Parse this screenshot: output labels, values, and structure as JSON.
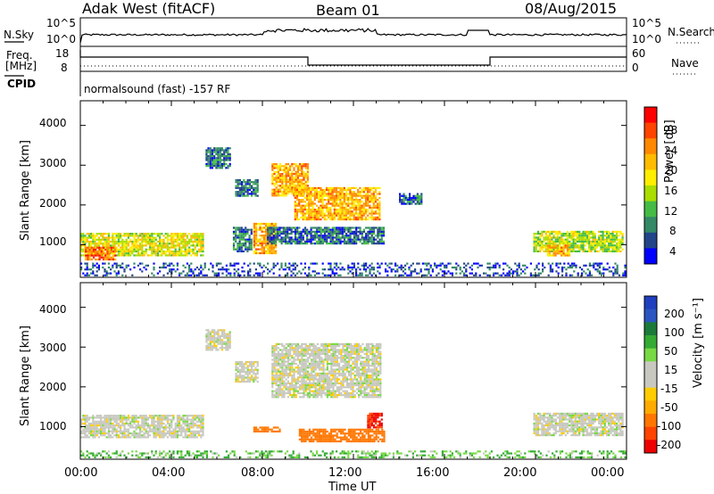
{
  "header": {
    "station": "Adak West (fitACF)",
    "beam": "Beam 01",
    "date": "08/Aug/2015"
  },
  "status_panels": {
    "nsky_label": "N.Sky",
    "nsky_ticks": [
      "10^5",
      "10^0"
    ],
    "nsearch_label": "N.Search",
    "nsearch_ticks": [
      "10^5",
      "10^0"
    ],
    "freq_label_1": "Freq.",
    "freq_label_2": "[MHz]",
    "freq_ticks": [
      "18",
      "8"
    ],
    "nave_label": "Nave",
    "nave_ticks": [
      "60",
      "0"
    ],
    "cpid_label": "CPID",
    "cpid_text": "normalsound (fast) -157 RF"
  },
  "colorbars": {
    "power": {
      "label": "Power [dB]",
      "ticks": [
        "28",
        "24",
        "20",
        "16",
        "12",
        "8",
        "4"
      ],
      "colors": [
        "#ff0000",
        "#ff4400",
        "#ff8800",
        "#ffbb00",
        "#ffee00",
        "#aadd00",
        "#44bb44",
        "#338866",
        "#224488",
        "#0000ff"
      ]
    },
    "velocity": {
      "label": "Velocity [m s⁻¹]",
      "ticks": [
        "200",
        "100",
        "50",
        "15",
        "-15",
        "-50",
        "-100",
        "-200"
      ],
      "colors": [
        "#1f3fbf",
        "#2b55c0",
        "#1b7a3a",
        "#33aa33",
        "#77d944",
        "#c8c8c0",
        "#c8c8c0",
        "#ffcc00",
        "#ffaa00",
        "#ff7700",
        "#ff4400",
        "#ee0000"
      ]
    }
  },
  "axes": {
    "ylabel": "Slant Range [km]",
    "xlabel": "Time UT",
    "yticks": [
      "4000",
      "3000",
      "2000",
      "1000"
    ],
    "xticks": [
      "00:00",
      "04:00",
      "08:00",
      "12:00",
      "16:00",
      "20:00",
      "00:00"
    ]
  },
  "chart_data": [
    {
      "type": "heatmap",
      "title": "Power",
      "xlabel": "Time UT",
      "ylabel": "Slant Range [km]",
      "x_range_hours": [
        0,
        24
      ],
      "ylim": [
        180,
        4620
      ],
      "colorbar_label": "Power [dB]",
      "color_ticks": [
        4,
        8,
        12,
        16,
        20,
        24,
        28
      ],
      "regions": [
        {
          "t0": 0.0,
          "t1": 5.4,
          "r0": 700,
          "r1": 1300,
          "power": 18
        },
        {
          "t0": 0.2,
          "t1": 1.6,
          "r0": 600,
          "r1": 950,
          "power": 26
        },
        {
          "t0": 5.5,
          "t1": 6.6,
          "r0": 2900,
          "r1": 3450,
          "power": 8
        },
        {
          "t0": 6.8,
          "t1": 7.8,
          "r0": 2200,
          "r1": 2650,
          "power": 8
        },
        {
          "t0": 6.7,
          "t1": 7.6,
          "r0": 800,
          "r1": 1450,
          "power": 8
        },
        {
          "t0": 7.6,
          "t1": 8.6,
          "r0": 750,
          "r1": 1550,
          "power": 22
        },
        {
          "t0": 8.4,
          "t1": 10.0,
          "r0": 2200,
          "r1": 3050,
          "power": 22
        },
        {
          "t0": 9.4,
          "t1": 13.2,
          "r0": 1600,
          "r1": 2450,
          "power": 22
        },
        {
          "t0": 8.2,
          "t1": 13.4,
          "r0": 1000,
          "r1": 1450,
          "power": 8
        },
        {
          "t0": 14.0,
          "t1": 15.0,
          "r0": 2000,
          "r1": 2300,
          "power": 8
        },
        {
          "t0": 19.9,
          "t1": 23.9,
          "r0": 800,
          "r1": 1350,
          "power": 16
        },
        {
          "t0": 20.5,
          "t1": 21.5,
          "r0": 700,
          "r1": 1000,
          "power": 22
        },
        {
          "t0": 0.0,
          "t1": 24.0,
          "r0": 200,
          "r1": 550,
          "power": 6
        }
      ]
    },
    {
      "type": "heatmap",
      "title": "Velocity",
      "xlabel": "Time UT",
      "ylabel": "Slant Range [km]",
      "x_range_hours": [
        0,
        24
      ],
      "ylim": [
        180,
        4620
      ],
      "colorbar_label": "Velocity [m s⁻¹]",
      "color_ticks": [
        -200,
        -100,
        -50,
        -15,
        15,
        50,
        100,
        200
      ],
      "regions": [
        {
          "t0": 0.0,
          "t1": 5.4,
          "r0": 700,
          "r1": 1300,
          "velocity": 0
        },
        {
          "t0": 5.5,
          "t1": 6.6,
          "r0": 2900,
          "r1": 3450,
          "velocity": 0
        },
        {
          "t0": 6.8,
          "t1": 7.8,
          "r0": 2100,
          "r1": 2650,
          "velocity": 0
        },
        {
          "t0": 8.4,
          "t1": 13.2,
          "r0": 1700,
          "r1": 3100,
          "velocity": 0
        },
        {
          "t0": 7.6,
          "t1": 8.8,
          "r0": 850,
          "r1": 1000,
          "velocity": -60
        },
        {
          "t0": 9.6,
          "t1": 13.4,
          "r0": 600,
          "r1": 950,
          "velocity": -60
        },
        {
          "t0": 12.6,
          "t1": 13.3,
          "r0": 950,
          "r1": 1350,
          "velocity": -150
        },
        {
          "t0": 19.9,
          "t1": 23.9,
          "r0": 750,
          "r1": 1350,
          "velocity": 0
        },
        {
          "t0": 0.0,
          "t1": 24.0,
          "r0": 200,
          "r1": 400,
          "velocity": 30
        }
      ]
    }
  ]
}
